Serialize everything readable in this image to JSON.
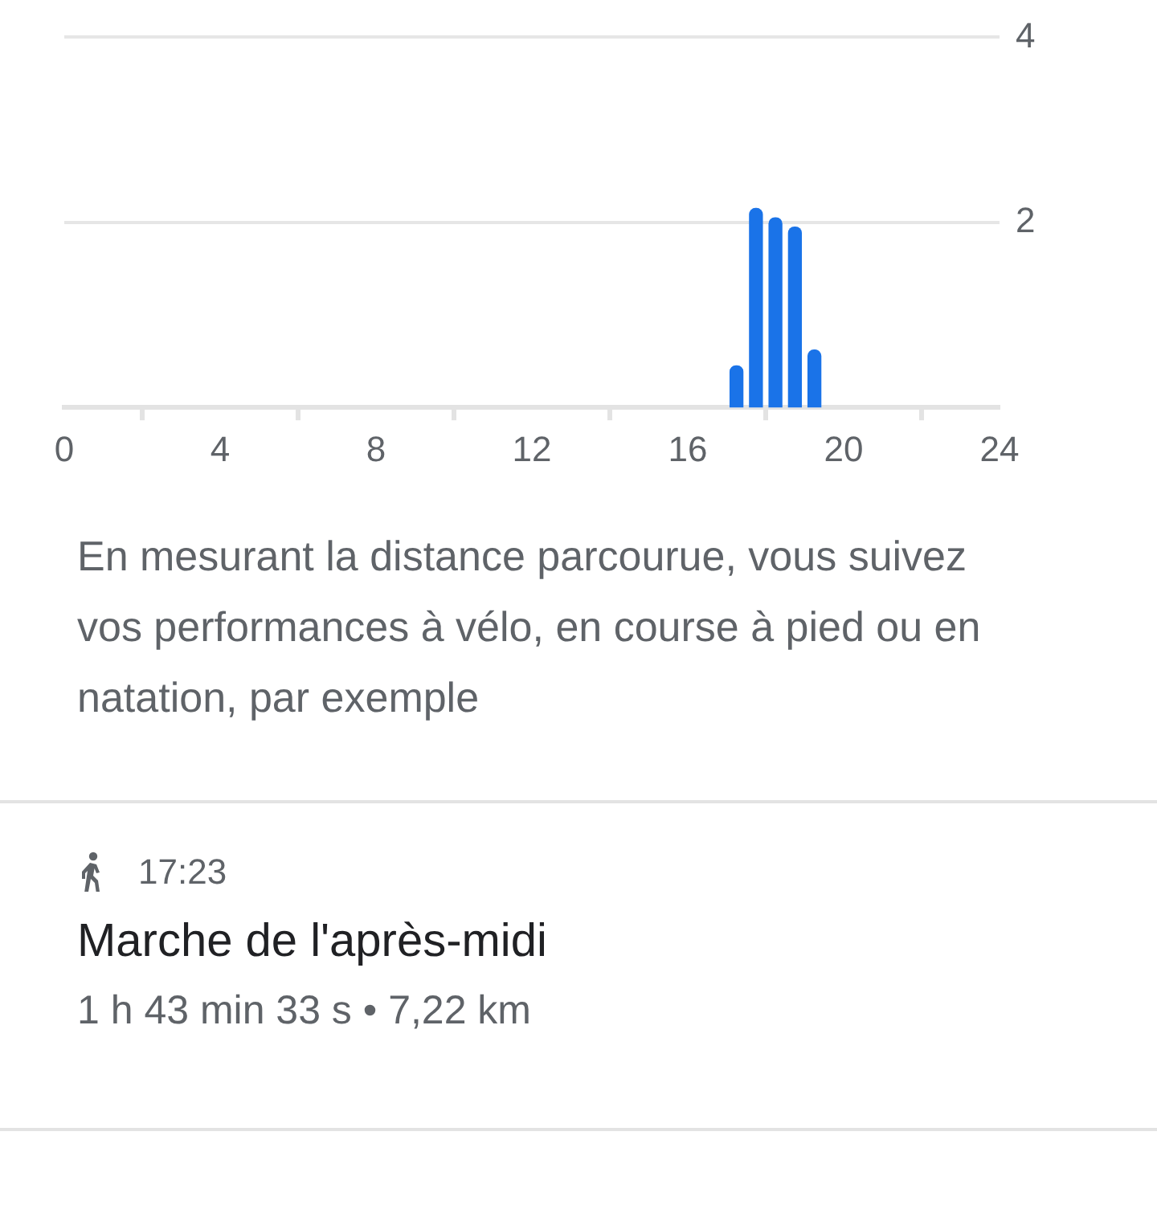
{
  "chart_data": {
    "type": "bar",
    "x": [
      17.25,
      17.75,
      18.25,
      18.75,
      19.25
    ],
    "values": [
      0.45,
      2.15,
      2.05,
      1.95,
      0.62
    ],
    "color": "#1a73e8",
    "xlim": [
      0,
      24
    ],
    "xticks": [
      0,
      4,
      8,
      12,
      16,
      20,
      24
    ],
    "ylim": [
      0,
      4
    ],
    "yticks": [
      2,
      4
    ],
    "grid": "y",
    "legend": false,
    "annotations": [
      "En mesurant la distance parcourue, vous suivez vos performances à vélo, en course à pied ou en natation, par exemple",
      "17:23",
      "Marche de l'après-midi",
      "1 h 43 min 33 s • 7,22 km"
    ]
  }
}
